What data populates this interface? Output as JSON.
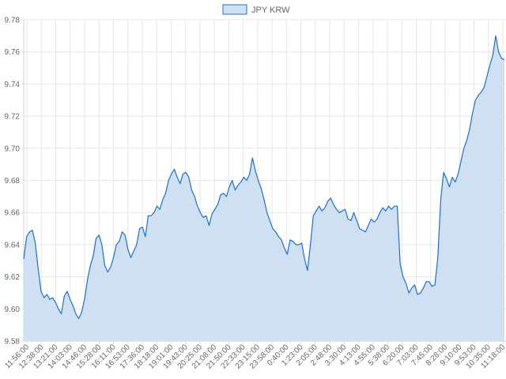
{
  "chart_data": {
    "type": "area",
    "legend": {
      "label": "JPY KRW",
      "position": "top"
    },
    "colors": {
      "line": "#1f6fc9",
      "fill": "#cfe0f3",
      "grid": "#e6e6e6",
      "axis_text": "#666666"
    },
    "grid": true,
    "ylim": [
      9.58,
      9.78
    ],
    "y_ticks": [
      "9.58",
      "9.60",
      "9.62",
      "9.64",
      "9.66",
      "9.68",
      "9.70",
      "9.72",
      "9.74",
      "9.76",
      "9.78"
    ],
    "x_ticks": [
      "11:56:00",
      "12:38:00",
      "13:21:00",
      "14:03:00",
      "14:46:00",
      "15:28:00",
      "16:11:00",
      "16:53:00",
      "17:36:00",
      "18:18:00",
      "19:01:00",
      "19:43:00",
      "20:25:00",
      "21:08:00",
      "21:50:00",
      "22:33:00",
      "23:15:00",
      "23:58:00",
      "0:40:00",
      "1:23:00",
      "2:05:00",
      "2:48:00",
      "3:30:00",
      "4:13:00",
      "4:55:00",
      "5:38:00",
      "6:20:00",
      "7:03:00",
      "7:45:00",
      "8:28:00",
      "9:10:00",
      "9:53:00",
      "10:35:00",
      "11:18:00"
    ],
    "series": [
      {
        "name": "JPY KRW",
        "values": [
          9.631,
          9.645,
          9.648,
          9.649,
          9.641,
          9.625,
          9.611,
          9.607,
          9.609,
          9.606,
          9.607,
          9.604,
          9.6,
          9.597,
          9.608,
          9.611,
          9.606,
          9.602,
          9.597,
          9.594,
          9.598,
          9.606,
          9.618,
          9.627,
          9.633,
          9.644,
          9.646,
          9.64,
          9.627,
          9.623,
          9.626,
          9.632,
          9.64,
          9.642,
          9.648,
          9.646,
          9.637,
          9.632,
          9.636,
          9.64,
          9.65,
          9.651,
          9.645,
          9.658,
          9.658,
          9.66,
          9.664,
          9.662,
          9.668,
          9.672,
          9.68,
          9.684,
          9.687,
          9.682,
          9.678,
          9.684,
          9.685,
          9.682,
          9.674,
          9.67,
          9.664,
          9.66,
          9.657,
          9.658,
          9.652,
          9.659,
          9.662,
          9.665,
          9.671,
          9.672,
          9.67,
          9.676,
          9.68,
          9.674,
          9.677,
          9.679,
          9.682,
          9.68,
          9.684,
          9.694,
          9.686,
          9.68,
          9.675,
          9.668,
          9.66,
          9.655,
          9.65,
          9.648,
          9.645,
          9.643,
          9.638,
          9.634,
          9.643,
          9.642,
          9.64,
          9.64,
          9.641,
          9.631,
          9.624,
          9.64,
          9.658,
          9.661,
          9.664,
          9.661,
          9.663,
          9.667,
          9.669,
          9.665,
          9.662,
          9.66,
          9.661,
          9.662,
          9.656,
          9.655,
          9.66,
          9.655,
          9.65,
          9.649,
          9.648,
          9.652,
          9.656,
          9.654,
          9.656,
          9.66,
          9.663,
          9.661,
          9.664,
          9.662,
          9.664,
          9.664,
          9.628,
          9.62,
          9.616,
          9.61,
          9.613,
          9.615,
          9.609,
          9.61,
          9.613,
          9.617,
          9.617,
          9.614,
          9.615,
          9.632,
          9.668,
          9.685,
          9.681,
          9.676,
          9.682,
          9.679,
          9.684,
          9.692,
          9.7,
          9.705,
          9.712,
          9.722,
          9.73,
          9.733,
          9.735,
          9.738,
          9.745,
          9.752,
          9.758,
          9.77,
          9.76,
          9.756,
          9.755
        ]
      }
    ]
  }
}
